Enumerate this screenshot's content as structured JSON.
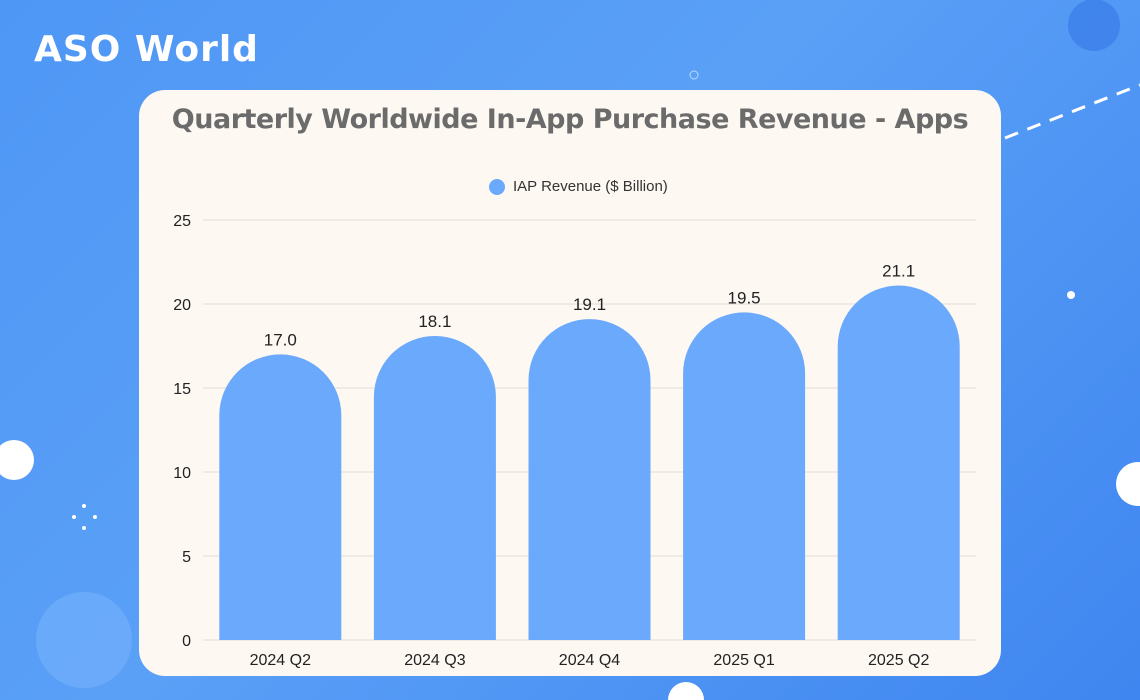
{
  "brand": {
    "logo_text": "ASO World"
  },
  "colors": {
    "background": "#4f97f5",
    "card": "#fdf8f2",
    "bar": "#6aa9fb",
    "title": "#6b6b6b"
  },
  "chart_data": {
    "type": "bar",
    "title": "Quarterly Worldwide In-App Purchase Revenue - Apps",
    "xlabel": "",
    "ylabel": "",
    "categories": [
      "2024 Q2",
      "2024 Q3",
      "2024 Q4",
      "2025 Q1",
      "2025 Q2"
    ],
    "series": [
      {
        "name": "IAP Revenue ($ Billion)",
        "values": [
          17.0,
          18.1,
          19.1,
          19.5,
          21.1
        ],
        "labels": [
          "17.0",
          "18.1",
          "19.1",
          "19.5",
          "21.1"
        ],
        "color": "#6aa9fb"
      }
    ],
    "ylim": [
      0,
      25
    ],
    "yticks": [
      0,
      5,
      10,
      15,
      20,
      25
    ],
    "grid": true,
    "legend_position": "top-center",
    "bar_shape": "rounded-top"
  }
}
